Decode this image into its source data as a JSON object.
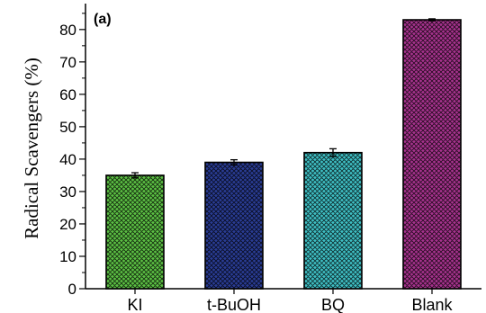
{
  "chart_data": {
    "type": "bar",
    "panel_label": "(a)",
    "title": "",
    "xlabel": "",
    "ylabel": "Radical Scavengers (%)",
    "categories": [
      "KI",
      "t-BuOH",
      "BQ",
      "Blank"
    ],
    "values": [
      35,
      39,
      42,
      83
    ],
    "errors": [
      0.8,
      0.8,
      1.2,
      0.3
    ],
    "ylim": [
      0,
      88
    ],
    "yticks": [
      0,
      10,
      20,
      30,
      40,
      50,
      60,
      70,
      80
    ],
    "colors": [
      "#5dc245",
      "#2a3d96",
      "#3fc1c6",
      "#a8338f"
    ],
    "pattern": "crosshatch",
    "grid": false,
    "legend": "none"
  }
}
